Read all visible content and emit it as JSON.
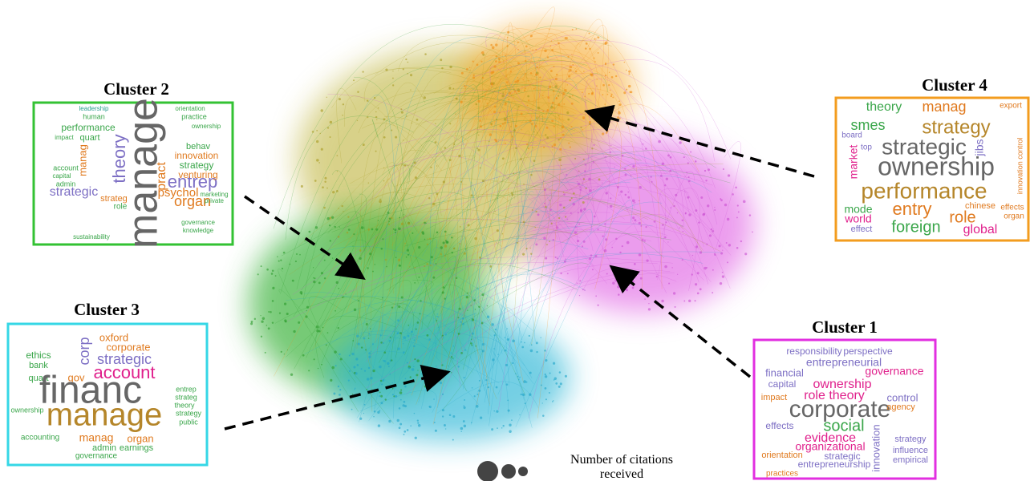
{
  "clusters": [
    {
      "title": "Cluster 2",
      "words": [
        "manage",
        "theory",
        "entrep",
        "organ",
        "psychol",
        "performance",
        "quart",
        "strategic",
        "pract",
        "innovation",
        "strategy",
        "venturing",
        "leadership",
        "human",
        "manag",
        "account",
        "capital",
        "admin",
        "role",
        "strateg",
        "behav",
        "orientation",
        "practice",
        "ownership",
        "governance",
        "knowledge",
        "sustainability",
        "marketing",
        "private",
        "impact"
      ]
    },
    {
      "title": "Cluster 4",
      "words": [
        "theory",
        "manag",
        "export",
        "smes",
        "strategy",
        "board",
        "top",
        "strategic",
        "jibs",
        "market",
        "ownership",
        "innovation control",
        "performance",
        "mode",
        "entry",
        "chinese",
        "effects",
        "world",
        "role",
        "organ",
        "effect",
        "foreign",
        "global"
      ]
    },
    {
      "title": "Cluster 3",
      "words": [
        "corp",
        "oxford",
        "corporate",
        "strategic",
        "ethics",
        "bank",
        "quart",
        "gov",
        "account",
        "entrep",
        "strateg",
        "theory",
        "financ",
        "manage",
        "ownership",
        "accounting",
        "manag",
        "organ",
        "admin",
        "earnings",
        "governance",
        "strategy",
        "public"
      ]
    },
    {
      "title": "Cluster 1",
      "words": [
        "responsibility",
        "perspective",
        "entrepreneurial",
        "governance",
        "financial",
        "capital",
        "ownership",
        "role theory",
        "impact",
        "control",
        "corporate",
        "social",
        "effects",
        "evidence",
        "organizational",
        "orientation",
        "strategic",
        "entrepreneurship",
        "practices",
        "strategy",
        "influence",
        "empirical",
        "innovation",
        "agency"
      ]
    }
  ],
  "legend": {
    "line1": "Number of citations",
    "line2": "received"
  }
}
